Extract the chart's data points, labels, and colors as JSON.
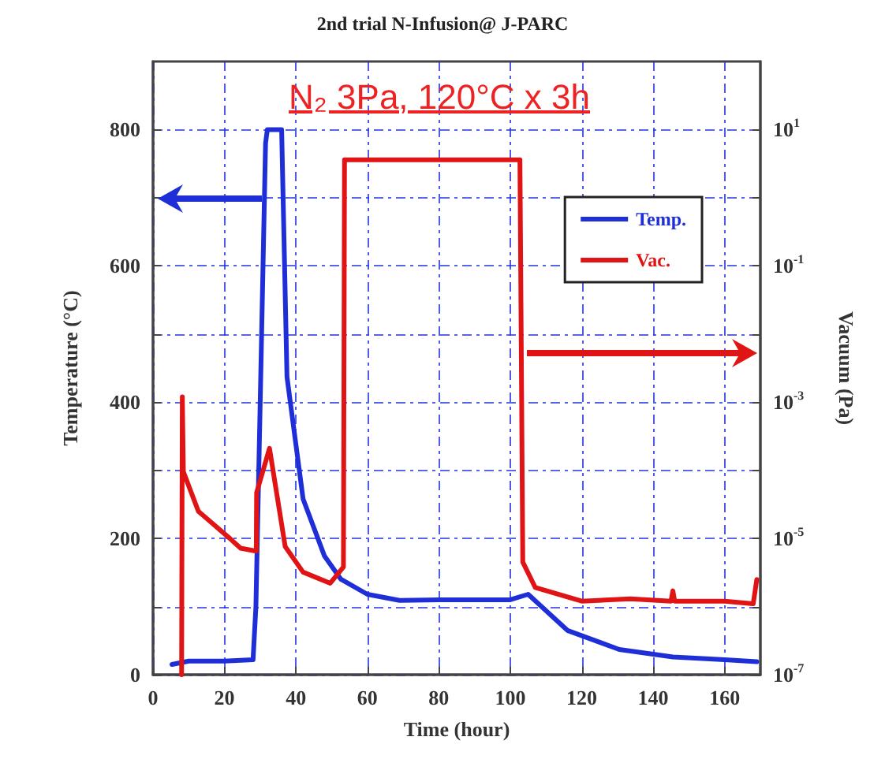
{
  "chart_data": {
    "type": "line",
    "title": "2nd trial N-Infusion@ J-PARC",
    "xlabel": "Time (hour)",
    "ylabel": "Temperature (°C)",
    "y2label": "Vacuum (Pa)",
    "annotations": [
      "N₂ 3Pa, 120°C x 3h"
    ],
    "xlim": [
      0,
      170
    ],
    "xticks": [
      0,
      20,
      40,
      60,
      80,
      100,
      120,
      140,
      160
    ],
    "ylim": [
      0,
      900
    ],
    "yticks": [
      0,
      {
        "value": 100,
        "label": null
      },
      200,
      {
        "value": 300,
        "label": null
      },
      400,
      {
        "value": 500,
        "label": null
      },
      600,
      {
        "value": 700,
        "label": null
      },
      800
    ],
    "y2lim": [
      1e-07,
      100
    ],
    "y2ticks": [
      {
        "value": 1e-07,
        "label": "10$^{-7}$"
      },
      {
        "value": 1e-06,
        "label": null
      },
      {
        "value": 1e-05,
        "label": "10$^{-5}$"
      },
      {
        "value": 0.0001,
        "label": null
      },
      {
        "value": 0.001,
        "label": "10$^{-3}$"
      },
      {
        "value": 0.01,
        "label": null
      },
      {
        "value": 0.1,
        "label": "10$^{-1}$"
      },
      {
        "value": 1,
        "label": null
      },
      {
        "value": 10,
        "label": "10$^{1}$"
      }
    ],
    "log": "y2",
    "grid": true,
    "legend": "top right",
    "marker": "none",
    "line_style": "solid",
    "series": [
      {
        "name": "Temp.",
        "color": "#1f2fd8",
        "x": [
          5.3,
          10,
          20,
          28,
          28.8,
          30,
          31.5,
          32,
          36,
          37.5,
          42,
          48,
          52.6,
          60,
          69,
          80,
          100,
          105,
          116,
          130.5,
          145.5,
          160,
          169
        ],
        "values": [
          15,
          20,
          20,
          22,
          100,
          400,
          780,
          800,
          800,
          437,
          258,
          174,
          140,
          118,
          109,
          110,
          110,
          118,
          65,
          37,
          26,
          22,
          19
        ]
      },
      {
        "name": "Vac.",
        "color": "#e01414",
        "axis": "y2",
        "x": [
          8,
          8.2,
          8.5,
          12.7,
          21.5,
          24.5,
          28.9,
          29,
          32.6,
          37,
          42,
          49.6,
          53.3,
          53.6,
          54,
          80,
          102.7,
          103.5,
          107,
          120,
          133.6,
          145,
          145.5,
          146,
          160,
          168,
          169
        ],
        "values": [
          1e-07,
          0.0012,
          9.5e-05,
          2.5e-05,
          1e-05,
          7.2e-06,
          6.5e-06,
          4.7e-05,
          0.00021,
          7.6e-06,
          3.2e-06,
          2.2e-06,
          3.8e-06,
          3.6,
          3.6,
          3.6,
          3.6,
          4.5e-06,
          1.9e-06,
          1.2e-06,
          1.3e-06,
          1.2e-06,
          1.7e-06,
          1.2e-06,
          1.2e-06,
          1.1e-06,
          2.5e-06
        ]
      }
    ]
  }
}
